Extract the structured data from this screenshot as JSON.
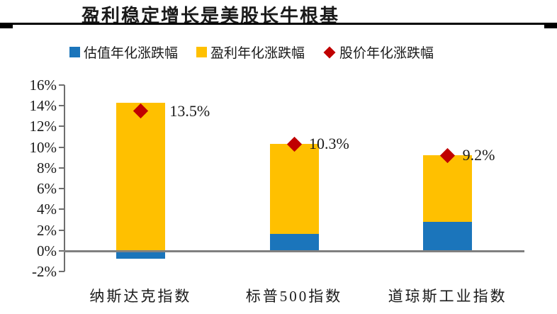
{
  "header": {
    "title": "盈利稳定增长是美股长牛根基"
  },
  "legend": {
    "items": [
      {
        "label": "估值年化涨跌幅",
        "marker": "square-icon",
        "color": "#1B75BB"
      },
      {
        "label": "盈利年化涨跌幅",
        "marker": "square-icon",
        "color": "#FFC000"
      },
      {
        "label": "股价年化涨跌幅",
        "marker": "diamond-icon",
        "color": "#C00000"
      }
    ]
  },
  "chart_data": {
    "type": "bar",
    "subtype": "stacked_bars_with_point_markers",
    "title": "盈利稳定增长是美股长牛根基",
    "categories": [
      "纳斯达克指数",
      "标普500指数",
      "道琼斯工业指数"
    ],
    "series": [
      {
        "name": "估值年化涨跌幅",
        "color": "#1B75BB",
        "values": [
          -0.8,
          1.6,
          2.8
        ]
      },
      {
        "name": "盈利年化涨跌幅",
        "color": "#FFC000",
        "values": [
          14.3,
          8.7,
          6.4
        ]
      }
    ],
    "point_series": {
      "name": "股价年化涨跌幅",
      "color": "#C00000",
      "values": [
        13.5,
        10.3,
        9.2
      ],
      "labels": [
        "13.5%",
        "10.3%",
        "9.2%"
      ]
    },
    "ylim": [
      -2,
      16
    ],
    "ytick_values": [
      16,
      14,
      12,
      10,
      8,
      6,
      4,
      2,
      0,
      -2
    ],
    "ytick_labels": [
      "16%",
      "14%",
      "12%",
      "10%",
      "8%",
      "6%",
      "4%",
      "2%",
      "0%",
      "-2%"
    ],
    "grid": false,
    "legend_position": "top",
    "colors": {
      "axis": "#6e6e6e",
      "zero_line": "#808080",
      "text": "#1a1a1a"
    }
  }
}
